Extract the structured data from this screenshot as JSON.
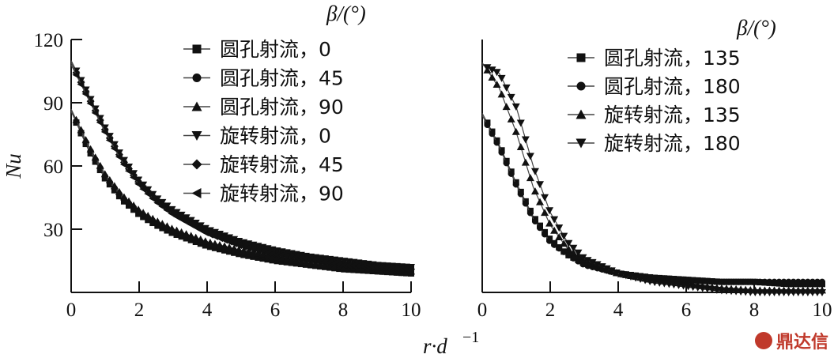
{
  "watermark": "鼎达信",
  "chart_data": [
    {
      "type": "line",
      "panel": "left",
      "ylabel": "Nu",
      "xlabel_base": "r·d",
      "xlabel_exp": "−1",
      "xlim": [
        0,
        10
      ],
      "ylim": [
        0,
        120
      ],
      "xticks": [
        "0",
        "2",
        "4",
        "6",
        "8",
        "10"
      ],
      "yticks": [
        "30",
        "60",
        "90",
        "120"
      ],
      "legend_title": "β/(°)",
      "legend_position": "top-right",
      "series": [
        {
          "name": "圆孔射流，0",
          "marker": "square",
          "x": [
            0,
            0.5,
            1,
            1.5,
            2,
            2.5,
            3,
            4,
            5,
            6,
            7,
            8,
            9,
            10
          ],
          "y": [
            86,
            68,
            54,
            44,
            37,
            32,
            28,
            22,
            18,
            15,
            13,
            11,
            10,
            9
          ]
        },
        {
          "name": "圆孔射流，45",
          "marker": "circle",
          "x": [
            0,
            0.5,
            1,
            1.5,
            2,
            2.5,
            3,
            4,
            5,
            6,
            7,
            8,
            9,
            10
          ],
          "y": [
            86,
            69,
            55,
            45,
            38,
            33,
            29,
            23,
            19,
            16,
            14,
            12,
            10,
            9
          ]
        },
        {
          "name": "圆孔射流，90",
          "marker": "triangle-up",
          "x": [
            0,
            0.5,
            1,
            1.5,
            2,
            2.5,
            3,
            4,
            5,
            6,
            7,
            8,
            9,
            10
          ],
          "y": [
            87,
            70,
            56,
            46,
            39,
            34,
            30,
            24,
            20,
            17,
            14,
            12,
            11,
            10
          ]
        },
        {
          "name": "旋转射流，0",
          "marker": "triangle-down",
          "x": [
            0,
            0.5,
            1,
            1.5,
            2,
            2.5,
            3,
            4,
            5,
            6,
            7,
            8,
            9,
            10
          ],
          "y": [
            110,
            94,
            78,
            64,
            53,
            45,
            39,
            30,
            24,
            20,
            17,
            15,
            13,
            12
          ]
        },
        {
          "name": "旋转射流，45",
          "marker": "diamond",
          "x": [
            0,
            0.5,
            1,
            1.5,
            2,
            2.5,
            3,
            4,
            5,
            6,
            7,
            8,
            9,
            10
          ],
          "y": [
            109,
            93,
            77,
            63,
            52,
            44,
            38,
            29,
            23,
            19,
            16,
            14,
            12,
            11
          ]
        },
        {
          "name": "旋转射流，90",
          "marker": "triangle-left",
          "x": [
            0,
            0.5,
            1,
            1.5,
            2,
            2.5,
            3,
            4,
            5,
            6,
            7,
            8,
            9,
            10
          ],
          "y": [
            108,
            92,
            76,
            62,
            51,
            43,
            37,
            28,
            22,
            18,
            16,
            13,
            12,
            11
          ]
        }
      ]
    },
    {
      "type": "line",
      "panel": "right",
      "xlim": [
        0,
        10
      ],
      "ylim": [
        0,
        120
      ],
      "xticks": [
        "0",
        "2",
        "4",
        "6",
        "8",
        "10"
      ],
      "legend_title": "β/(°)",
      "legend_position": "top-right",
      "series": [
        {
          "name": "圆孔射流，135",
          "marker": "square",
          "x": [
            0,
            0.5,
            1,
            1.5,
            2,
            2.5,
            3,
            4,
            5,
            6,
            7,
            8,
            9,
            10
          ],
          "y": [
            85,
            70,
            52,
            36,
            25,
            18,
            14,
            9,
            7,
            6,
            5,
            5,
            4,
            4
          ]
        },
        {
          "name": "圆孔射流，180",
          "marker": "circle",
          "x": [
            0,
            0.5,
            1,
            1.5,
            2,
            2.5,
            3,
            4,
            5,
            6,
            7,
            8,
            9,
            10
          ],
          "y": [
            84,
            69,
            51,
            35,
            24,
            18,
            13,
            9,
            7,
            6,
            5,
            5,
            5,
            5
          ]
        },
        {
          "name": "旋转射流，135",
          "marker": "triangle-up",
          "x": [
            0,
            0.5,
            1,
            1.5,
            2,
            2.5,
            3,
            4,
            5,
            6,
            7,
            8,
            9,
            10
          ],
          "y": [
            109,
            97,
            76,
            50,
            32,
            21,
            15,
            9,
            6,
            4,
            2,
            1,
            1,
            1
          ]
        },
        {
          "name": "旋转射流，180",
          "marker": "triangle-down",
          "x": [
            0,
            0.5,
            1,
            1.5,
            2,
            2.5,
            3,
            4,
            5,
            6,
            7,
            8,
            9,
            10
          ],
          "y": [
            108,
            104,
            88,
            60,
            38,
            24,
            16,
            9,
            5,
            3,
            1,
            0,
            0,
            0
          ]
        }
      ]
    }
  ]
}
